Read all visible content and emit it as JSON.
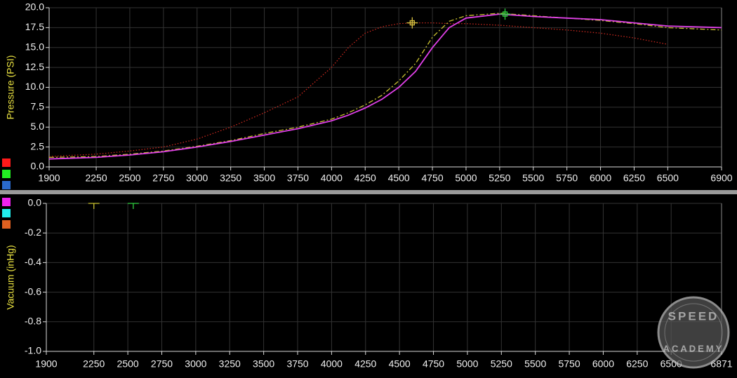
{
  "chart_data": [
    {
      "type": "line",
      "y_label": "Pressure (PSI)",
      "x": [
        1900,
        2250,
        2500,
        2750,
        3000,
        3250,
        3500,
        3750,
        4000,
        4125,
        4250,
        4375,
        4500,
        4625,
        4750,
        4875,
        5000,
        5250,
        5500,
        5750,
        6000,
        6250,
        6500,
        6900
      ],
      "series": [
        {
          "color": "#c8281e",
          "style": "dotted",
          "values": [
            1.3,
            1.6,
            2.0,
            2.5,
            3.5,
            5.0,
            6.8,
            8.8,
            12.5,
            15.0,
            16.8,
            17.6,
            18.0,
            18.1,
            18.1,
            18.0,
            18.0,
            17.8,
            17.5,
            17.2,
            16.8,
            16.2,
            15.4,
            null
          ]
        },
        {
          "color": "#c8c030",
          "style": "dashdot",
          "values": [
            1.2,
            1.3,
            1.6,
            2.0,
            2.6,
            3.3,
            4.2,
            5.0,
            6.0,
            6.8,
            7.8,
            9.0,
            10.8,
            13.0,
            16.3,
            18.3,
            19.0,
            19.3,
            19.0,
            18.7,
            18.4,
            18.0,
            17.5,
            17.2
          ]
        },
        {
          "color": "#e040e8",
          "style": "solid",
          "values": [
            1.0,
            1.2,
            1.5,
            1.9,
            2.5,
            3.2,
            4.0,
            4.8,
            5.8,
            6.5,
            7.4,
            8.5,
            10.0,
            12.0,
            15.0,
            17.5,
            18.7,
            19.2,
            18.9,
            18.7,
            18.5,
            18.1,
            17.7,
            17.5
          ]
        }
      ],
      "markers": [
        {
          "x": 4600,
          "y": 18.1,
          "color": "#d8c040"
        },
        {
          "x": 5290,
          "y": 19.2,
          "color": "#30d040"
        }
      ],
      "xlim": [
        1900,
        6900
      ],
      "xticks": [
        1900,
        2250,
        2500,
        2750,
        3000,
        3250,
        3500,
        3750,
        4000,
        4250,
        4500,
        4750,
        5000,
        5250,
        5500,
        5750,
        6000,
        6250,
        6500,
        6900
      ],
      "ylim": [
        0,
        20
      ],
      "yticks": [
        {
          "value": 0,
          "label": "0.0"
        },
        2.5,
        {
          "value": 5,
          "label": "5.0"
        },
        7.5,
        {
          "value": 10,
          "label": "10.0"
        },
        12.5,
        {
          "value": 15,
          "label": "15.0"
        },
        17.5,
        {
          "value": 20,
          "label": "20.0"
        }
      ],
      "grid": true
    },
    {
      "type": "line",
      "y_label": "Vacuum (inHg)",
      "x": [],
      "series": [],
      "markers": [
        {
          "x": 2250,
          "y": 0,
          "color": "#c8c030"
        },
        {
          "x": 2540,
          "y": 0,
          "color": "#30d040"
        }
      ],
      "xlim": [
        1900,
        6871
      ],
      "xticks": [
        1900,
        2250,
        2500,
        2750,
        3000,
        3250,
        3500,
        3750,
        4000,
        4250,
        4500,
        4750,
        5000,
        5250,
        5500,
        5750,
        6000,
        6250,
        6500,
        6871
      ],
      "ylim": [
        -1,
        0
      ],
      "yticks": [
        {
          "value": 0,
          "label": "0.0"
        },
        -0.2,
        -0.4,
        -0.6,
        -0.8,
        {
          "value": -1,
          "label": "-1.0"
        }
      ],
      "grid": true
    }
  ],
  "watermark": {
    "top": "SPEED",
    "bottom": "ACADEMY"
  }
}
